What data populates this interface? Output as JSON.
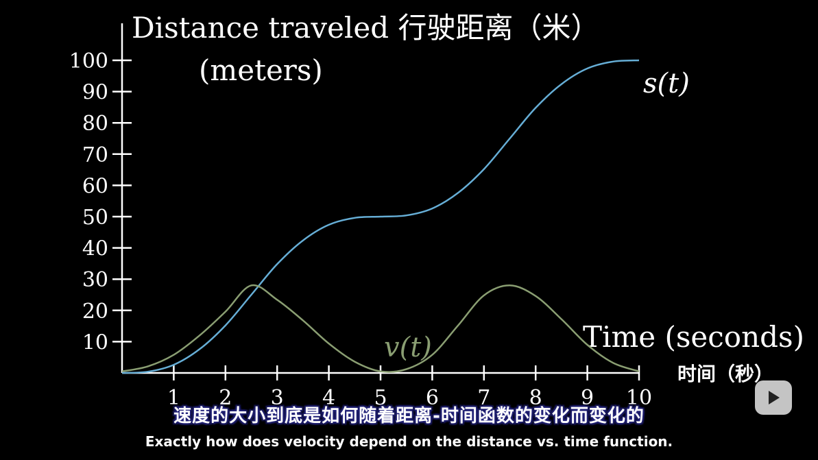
{
  "chart_data": {
    "type": "line",
    "title": "",
    "ylabel_line1": "Distance traveled 行驶距离（米）",
    "ylabel_line2": "(meters)",
    "xlabel": "Time (seconds)",
    "xlabel_zh": "时间（秒）",
    "xlim": [
      0,
      10
    ],
    "ylim": [
      0,
      100
    ],
    "x_ticks": [
      "1",
      "2",
      "3",
      "4",
      "5",
      "6",
      "7",
      "8",
      "9",
      "10"
    ],
    "y_ticks": [
      "10",
      "20",
      "30",
      "40",
      "50",
      "60",
      "70",
      "80",
      "90",
      "100"
    ],
    "grid": false,
    "x": [
      0,
      0.5,
      1,
      1.5,
      2,
      2.5,
      3,
      3.5,
      4,
      4.5,
      5,
      5.5,
      6,
      6.5,
      7,
      7.5,
      8,
      8.5,
      9,
      9.5,
      10
    ],
    "series": [
      {
        "name": "s(t)",
        "label": "s(t)",
        "color": "#66aed6",
        "values": [
          0,
          0.4,
          2.6,
          7.6,
          15.2,
          25,
          34.8,
          42.4,
          47.4,
          49.6,
          50,
          50.4,
          52.6,
          57.6,
          65.2,
          75,
          84.8,
          92.4,
          97.4,
          99.6,
          100
        ]
      },
      {
        "name": "v(t)",
        "label": "v(t)",
        "color": "#8a9e72",
        "values": [
          0.5,
          2.1,
          5.8,
          12,
          19.6,
          28,
          23.4,
          16.8,
          9.4,
          3.6,
          0.5,
          1.2,
          5.8,
          15.2,
          24.8,
          28,
          24.6,
          17.2,
          9,
          3.2,
          0.5
        ]
      }
    ]
  },
  "subtitles": {
    "zh": "速度的大小到底是如何随着距离-时间函数的变化而变化的",
    "en": "Exactly how does velocity depend on the distance vs. time function."
  },
  "player": {
    "play_icon": "play-icon"
  }
}
